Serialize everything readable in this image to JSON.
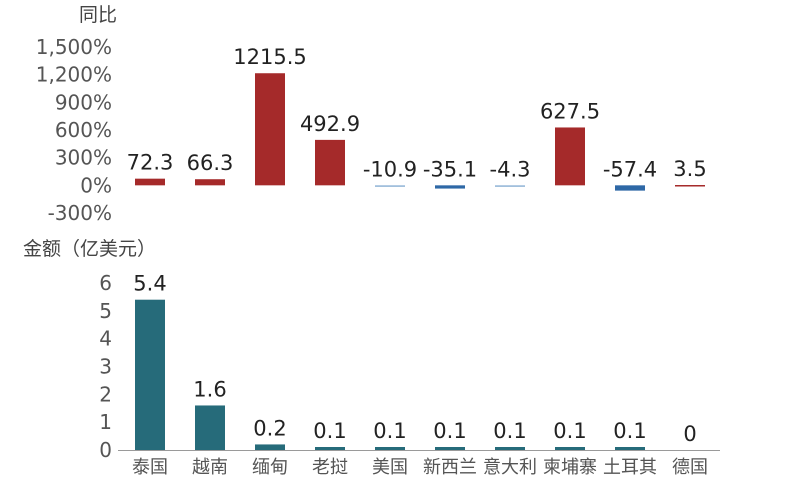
{
  "chart_data": [
    {
      "type": "bar",
      "ylabel": "同比",
      "categories": [
        "泰国",
        "越南",
        "缅甸",
        "老挝",
        "美国",
        "新西兰",
        "意大利",
        "柬埔寨",
        "土耳其",
        "德国"
      ],
      "values": [
        72.3,
        66.3,
        1215.5,
        492.9,
        -10.9,
        -35.1,
        -4.3,
        627.5,
        -57.4,
        3.5
      ],
      "data_labels": [
        "72.3",
        "66.3",
        "1215.5",
        "492.9",
        "-10.9",
        "-35.1",
        "-4.3",
        "627.5",
        "-57.4",
        "3.5"
      ],
      "yticks": [
        1500,
        1200,
        900,
        600,
        300,
        0,
        -300
      ],
      "ytick_labels": [
        "1,500%",
        "1,200%",
        "900%",
        "600%",
        "300%",
        "0%",
        "-300%"
      ],
      "ylim": [
        -300,
        1500
      ],
      "colors": {
        "positive": "#a52a2a",
        "negative": "#2e68a6",
        "small_negative": "#8fb3d6"
      }
    },
    {
      "type": "bar",
      "ylabel": "金额（亿美元）",
      "categories": [
        "泰国",
        "越南",
        "缅甸",
        "老挝",
        "美国",
        "新西兰",
        "意大利",
        "柬埔寨",
        "土耳其",
        "德国"
      ],
      "values": [
        5.4,
        1.6,
        0.2,
        0.1,
        0.1,
        0.1,
        0.1,
        0.1,
        0.1,
        0
      ],
      "data_labels": [
        "5.4",
        "1.6",
        "0.2",
        "0.1",
        "0.1",
        "0.1",
        "0.1",
        "0.1",
        "0.1",
        "0"
      ],
      "yticks": [
        6,
        5,
        4,
        3,
        2,
        1,
        0
      ],
      "ytick_labels": [
        "6",
        "5",
        "4",
        "3",
        "2",
        "1",
        "0"
      ],
      "ylim": [
        0,
        6
      ],
      "colors": {
        "bar": "#266b7a"
      }
    }
  ]
}
